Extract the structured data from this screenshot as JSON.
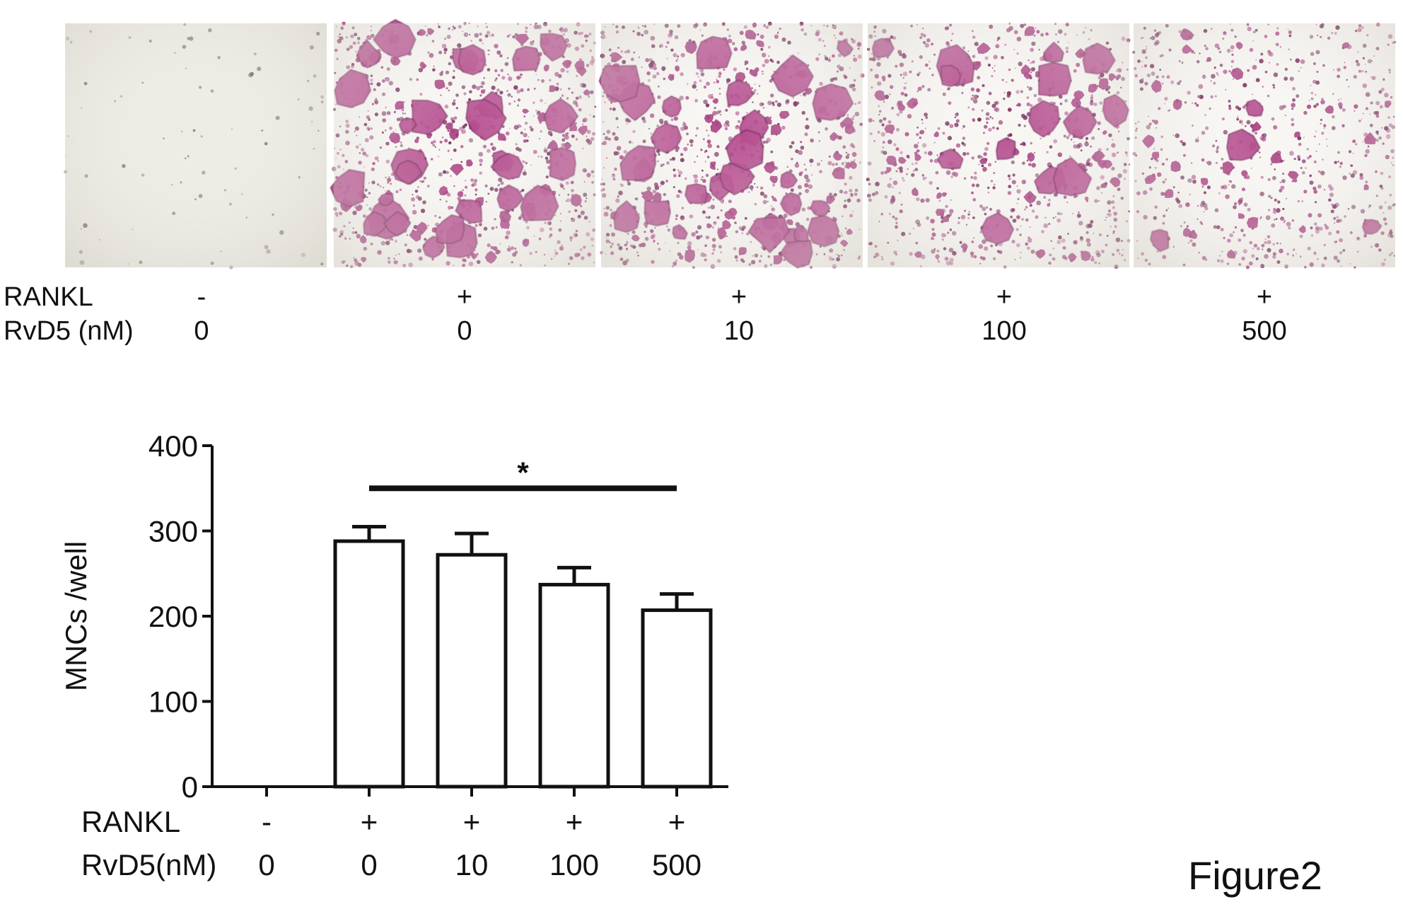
{
  "figure_label": "Figure2",
  "micrographs": {
    "row_labels": {
      "rankl": "RANKL",
      "rvd5": "RvD5  (nM)"
    },
    "panels": [
      {
        "rankl": "-",
        "rvd5": "0",
        "stain_level": "none"
      },
      {
        "rankl": "+",
        "rvd5": "0",
        "stain_level": "high"
      },
      {
        "rankl": "+",
        "rvd5": "10",
        "stain_level": "high"
      },
      {
        "rankl": "+",
        "rvd5": "100",
        "stain_level": "medium"
      },
      {
        "rankl": "+",
        "rvd5": "500",
        "stain_level": "low"
      }
    ],
    "colors": {
      "stain": "#a43a7d",
      "dark_stain": "#6e2354",
      "background": "#f8f6f3",
      "control_background": "#ecebe4"
    }
  },
  "chart_data": {
    "type": "bar",
    "categories": [
      "0",
      "0",
      "10",
      "100",
      "500"
    ],
    "group_rows": {
      "rankl_label": "RANKL",
      "rvd5_label": "RvD5(nM)",
      "rankl": [
        "-",
        "+",
        "+",
        "+",
        "+"
      ],
      "rvd5": [
        "0",
        "0",
        "10",
        "100",
        "500"
      ]
    },
    "values": [
      0,
      288,
      272,
      237,
      207
    ],
    "errors": [
      0,
      17,
      25,
      20,
      19
    ],
    "ylabel": "MNCs /well",
    "ylim": [
      0,
      400
    ],
    "yticks": [
      0,
      100,
      200,
      300,
      400
    ],
    "significance": {
      "label": "*",
      "from_index": 1,
      "to_index": 4,
      "y": 350
    },
    "grid": false,
    "legend": "none"
  }
}
